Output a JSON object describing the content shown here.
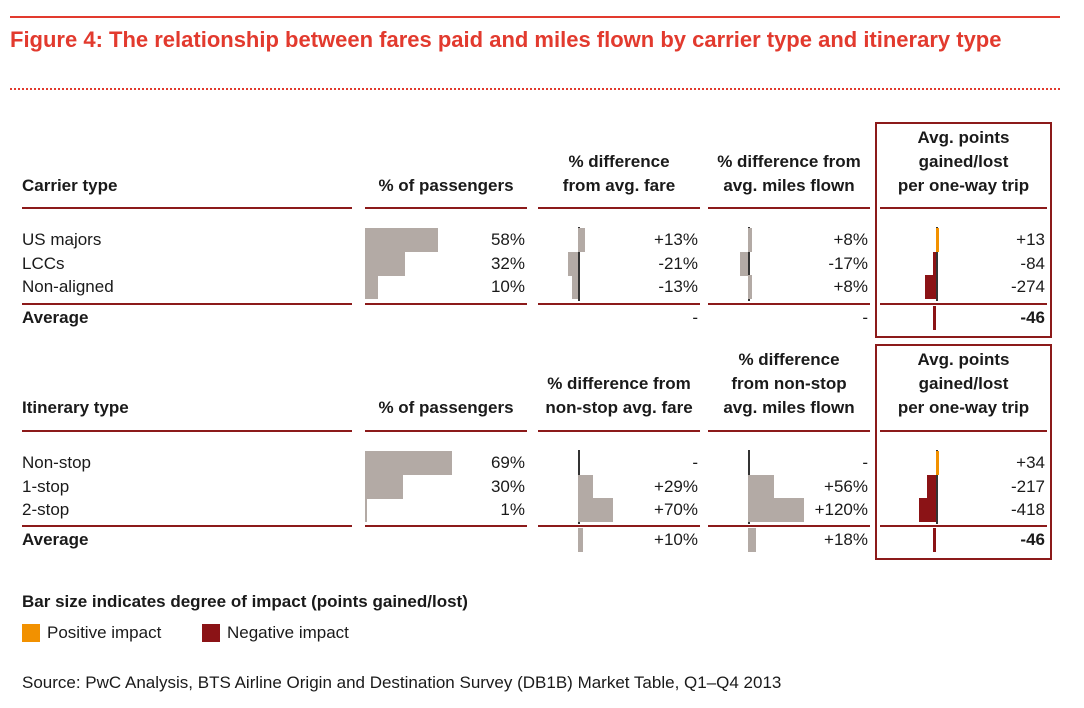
{
  "title": "Figure 4: The relationship between fares paid and miles flown by carrier type and itinerary type",
  "colors": {
    "accent": "#e23a2e",
    "positive": "#f29100",
    "negative": "#8b1316",
    "bar": "#b3aaa5",
    "rule": "#8c1a1a"
  },
  "chart_data": [
    {
      "type": "table",
      "headers": {
        "label": "Carrier type",
        "passengers": "% of passengers",
        "fare": [
          "% difference",
          "from avg. fare"
        ],
        "miles": [
          "% difference from",
          "avg. miles flown"
        ],
        "points": [
          "Avg. points",
          "gained/lost",
          "per one-way trip"
        ]
      },
      "rows": [
        {
          "label": "US majors",
          "passengers": 58,
          "passengers_text": "58%",
          "fare": 13,
          "fare_text": "+13%",
          "miles": 8,
          "miles_text": "+8%",
          "points": 13,
          "points_text": "+13"
        },
        {
          "label": "LCCs",
          "passengers": 32,
          "passengers_text": "32%",
          "fare": -21,
          "fare_text": "-21%",
          "miles": -17,
          "miles_text": "-17%",
          "points": -84,
          "points_text": "-84"
        },
        {
          "label": "Non-aligned",
          "passengers": 10,
          "passengers_text": "10%",
          "fare": -13,
          "fare_text": "-13%",
          "miles": 8,
          "miles_text": "+8%",
          "points": -274,
          "points_text": "-274"
        }
      ],
      "average": {
        "label": "Average",
        "fare_text": "-",
        "miles_text": "-",
        "points": -46,
        "points_text": "-46"
      }
    },
    {
      "type": "table",
      "headers": {
        "label": "Itinerary type",
        "passengers": "% of passengers",
        "fare": [
          "% difference from",
          "non-stop avg. fare"
        ],
        "miles": [
          "% difference",
          "from non-stop",
          "avg. miles flown"
        ],
        "points": [
          "Avg. points",
          "gained/lost",
          "per one-way trip"
        ]
      },
      "rows": [
        {
          "label": "Non-stop",
          "passengers": 69,
          "passengers_text": "69%",
          "fare": 0,
          "fare_text": "-",
          "miles": 0,
          "miles_text": "-",
          "points": 34,
          "points_text": "+34"
        },
        {
          "label": "1-stop",
          "passengers": 30,
          "passengers_text": "30%",
          "fare": 29,
          "fare_text": "+29%",
          "miles": 56,
          "miles_text": "+56%",
          "points": -217,
          "points_text": "-217"
        },
        {
          "label": "2-stop",
          "passengers": 1,
          "passengers_text": "1%",
          "fare": 70,
          "fare_text": "+70%",
          "miles": 120,
          "miles_text": "+120%",
          "points": -418,
          "points_text": "-418"
        }
      ],
      "average": {
        "label": "Average",
        "fare": 10,
        "fare_text": "+10%",
        "miles": 18,
        "miles_text": "+18%",
        "points": -46,
        "points_text": "-46"
      }
    }
  ],
  "legend": {
    "title": "Bar size indicates degree of impact (points gained/lost)",
    "positive": "Positive impact",
    "negative": "Negative impact"
  },
  "source": "Source: PwC Analysis, BTS Airline Origin and Destination Survey (DB1B) Market Table, Q1–Q4 2013"
}
